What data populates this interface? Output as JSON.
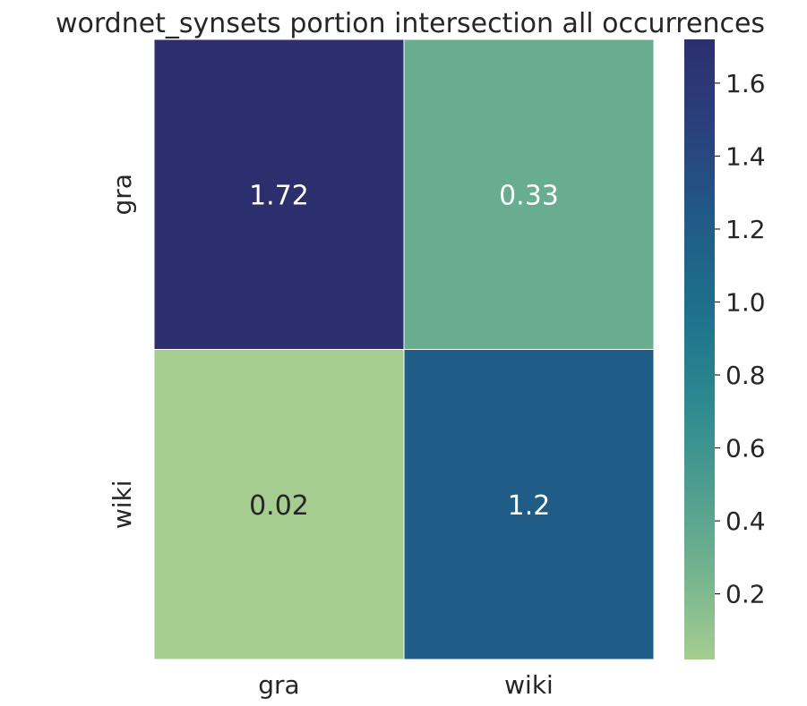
{
  "chart_data": {
    "type": "heatmap",
    "title": "wordnet_synsets portion intersection all occurrences",
    "xlabel": "",
    "ylabel": "",
    "x_categories": [
      "gra",
      "wiki"
    ],
    "y_categories": [
      "gra",
      "wiki"
    ],
    "values": [
      [
        1.72,
        0.33
      ],
      [
        0.02,
        1.2
      ]
    ],
    "cell_labels": [
      [
        "1.72",
        "0.33"
      ],
      [
        "0.02",
        "1.2"
      ]
    ],
    "colorbar": {
      "min": 0.02,
      "max": 1.72,
      "ticks": [
        0.2,
        0.4,
        0.6,
        0.8,
        1.0,
        1.2,
        1.4,
        1.6
      ],
      "tick_labels": [
        "0.2",
        "0.4",
        "0.6",
        "0.8",
        "1.0",
        "1.2",
        "1.4",
        "1.6"
      ]
    },
    "colormap": "crest",
    "colormap_stops": [
      "#a5cd90",
      "#73b38f",
      "#4b9c8f",
      "#2a878f",
      "#1e6f8b",
      "#205a85",
      "#2a417c",
      "#2c2f6e"
    ],
    "cell_text_colors": [
      [
        "#ffffff",
        "#ffffff"
      ],
      [
        "#262626",
        "#ffffff"
      ]
    ]
  }
}
